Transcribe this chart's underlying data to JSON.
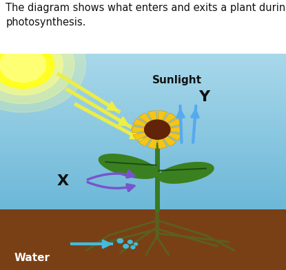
{
  "title_text": "The diagram shows what enters and exits a plant during\nphotosynthesis.",
  "title_fontsize": 10.5,
  "title_color": "#111111",
  "sky_color_top": "#a8d8ea",
  "sky_color_bottom": "#6db8d8",
  "ground_color": "#7a4015",
  "label_sunlight": "Sunlight",
  "label_x": "X",
  "label_y": "Y",
  "label_water": "Water",
  "x_arrow_color": "#7755cc",
  "y_arrow_color": "#55aaee",
  "water_arrow_color": "#44bbdd",
  "sunlight_arrow_color": "#eeee44",
  "flower_petal_color": "#f5c518",
  "flower_center_color": "#6b2a0a",
  "stem_color": "#3a7a20",
  "leaf_color": "#3a8020",
  "root_color": "#5a6020",
  "fig_width": 4.15,
  "fig_height": 3.92,
  "dpi": 100
}
